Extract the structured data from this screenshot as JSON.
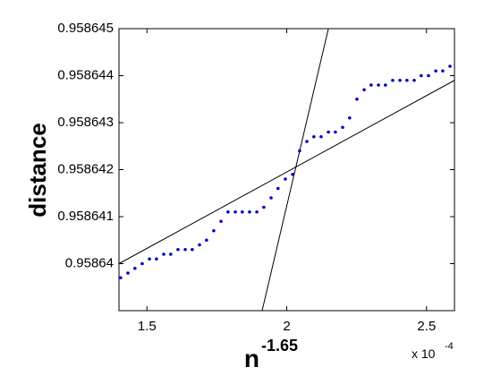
{
  "chart_data": {
    "type": "scatter",
    "xlabel": "n",
    "xlabel_exponent": "-1.65",
    "ylabel": "distance",
    "x_multiplier": "x 10",
    "x_multiplier_exponent": "-4",
    "xlim": [
      1.4,
      2.6
    ],
    "ylim": [
      0.958639,
      0.958645
    ],
    "xticks": [
      1.5,
      2,
      2.5
    ],
    "yticks": [
      0.95864,
      0.958641,
      0.958642,
      0.958643,
      0.958644,
      0.958645
    ],
    "grid": false,
    "series": [
      {
        "color": "#0000cc",
        "x": [
          1.406,
          1.432,
          1.457,
          1.483,
          1.509,
          1.534,
          1.56,
          1.585,
          1.611,
          1.637,
          1.662,
          1.688,
          1.713,
          1.739,
          1.765,
          1.79,
          1.816,
          1.841,
          1.867,
          1.893,
          1.918,
          1.944,
          1.969,
          1.995,
          2.021,
          2.046,
          2.072,
          2.097,
          2.123,
          2.149,
          2.174,
          2.2,
          2.225,
          2.251,
          2.277,
          2.302,
          2.328,
          2.353,
          2.379,
          2.405,
          2.43,
          2.456,
          2.481,
          2.507,
          2.533,
          2.558,
          2.584
        ],
        "values": [
          0.9586397,
          0.9586398,
          0.9586399,
          0.95864,
          0.9586401,
          0.9586401,
          0.9586402,
          0.9586402,
          0.9586403,
          0.9586403,
          0.9586403,
          0.9586404,
          0.9586405,
          0.9586407,
          0.9586409,
          0.9586411,
          0.9586411,
          0.9586411,
          0.9586411,
          0.9586411,
          0.9586412,
          0.9586414,
          0.9586416,
          0.9586418,
          0.9586419,
          0.9586424,
          0.9586426,
          0.9586427,
          0.9586427,
          0.9586428,
          0.9586428,
          0.9586429,
          0.9586431,
          0.9586435,
          0.9586437,
          0.9586438,
          0.9586438,
          0.9586438,
          0.9586439,
          0.9586439,
          0.9586439,
          0.9586439,
          0.958644,
          0.958644,
          0.9586441,
          0.9586441,
          0.9586442
        ]
      }
    ],
    "lines": [
      {
        "color": "#000000",
        "x": [
          1.912,
          2.149
        ],
        "values": [
          0.958639,
          0.958645
        ]
      },
      {
        "color": "#000000",
        "x": [
          1.4,
          2.6
        ],
        "values": [
          0.95864,
          0.9586439
        ]
      }
    ]
  }
}
